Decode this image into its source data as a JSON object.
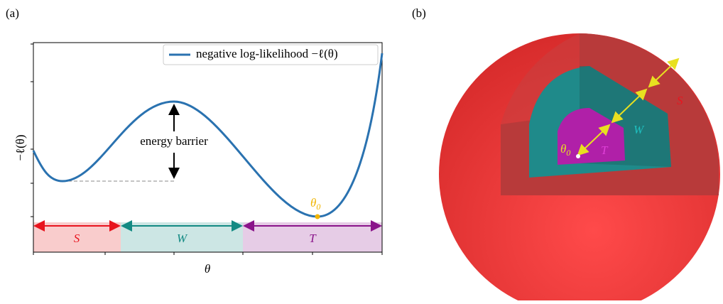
{
  "panel_a": {
    "tag": "(a)",
    "legend": "negative log-likelihood −ℓ(θ)",
    "y_label": "−ℓ(θ)",
    "x_label": "θ",
    "annotation": "energy barrier",
    "minimum": {
      "symbol": "θ",
      "subscript": "0"
    },
    "regions": [
      "S",
      "W",
      "T"
    ]
  },
  "panel_b": {
    "tag": "(b)",
    "regions": [
      "S",
      "W",
      "T"
    ],
    "center": {
      "symbol": "θ",
      "subscript": "0"
    }
  }
}
